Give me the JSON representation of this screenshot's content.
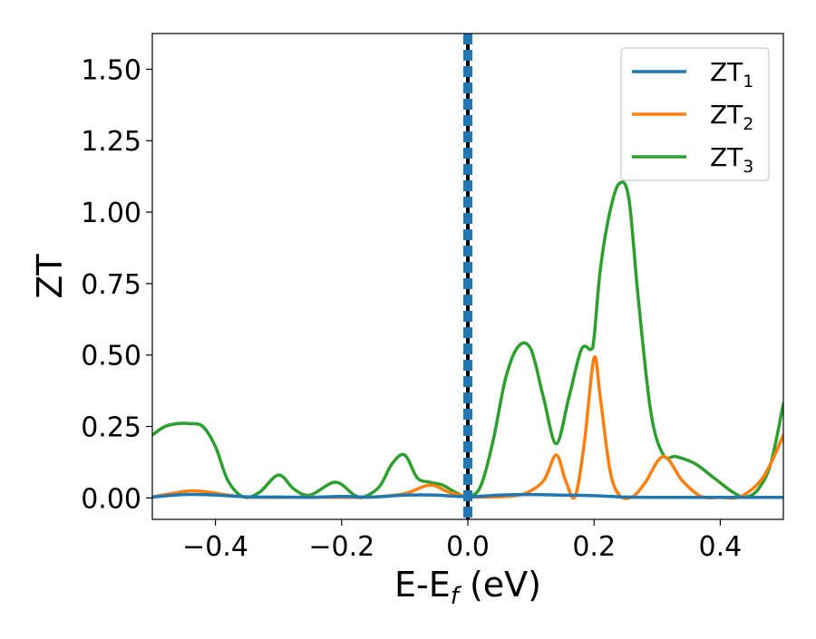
{
  "chart_data": {
    "type": "line",
    "title": "",
    "xlabel": "E-E",
    "xlabel_sub": "f",
    "xlabel_unit": " (eV)",
    "ylabel": "ZT",
    "xlim": [
      -0.5,
      0.5
    ],
    "ylim": [
      -0.075,
      1.625
    ],
    "xticks": [
      -0.4,
      -0.2,
      0.0,
      0.2,
      0.4
    ],
    "xtick_labels": [
      "−0.4",
      "−0.2",
      "0.0",
      "0.2",
      "0.4"
    ],
    "yticks": [
      0.0,
      0.25,
      0.5,
      0.75,
      1.0,
      1.25,
      1.5
    ],
    "ytick_labels": [
      "0.00",
      "0.25",
      "0.50",
      "0.75",
      "1.00",
      "1.25",
      "1.50"
    ],
    "grid": false,
    "legend_position": "top-right",
    "vline": {
      "x": 0.0,
      "colors": [
        "#000000",
        "#1f77b4"
      ]
    },
    "series": [
      {
        "name": "ZT",
        "name_sub": "1",
        "color": "#1f77b4",
        "x": [
          -0.5,
          -0.45,
          -0.4,
          -0.35,
          -0.3,
          -0.25,
          -0.2,
          -0.15,
          -0.1,
          -0.05,
          0.0,
          0.05,
          0.1,
          0.15,
          0.2,
          0.25,
          0.3,
          0.35,
          0.4,
          0.45,
          0.5
        ],
        "y": [
          0.003,
          0.012,
          0.01,
          0.004,
          0.003,
          0.002,
          0.005,
          0.003,
          0.01,
          0.01,
          0.004,
          0.01,
          0.012,
          0.01,
          0.008,
          0.003,
          0.002,
          0.002,
          0.002,
          0.002,
          0.002
        ]
      },
      {
        "name": "ZT",
        "name_sub": "2",
        "color": "#ff7f0e",
        "x": [
          -0.5,
          -0.47,
          -0.44,
          -0.41,
          -0.38,
          -0.35,
          -0.3,
          -0.25,
          -0.2,
          -0.15,
          -0.1,
          -0.06,
          -0.03,
          0.0,
          0.03,
          0.06,
          0.09,
          0.12,
          0.14,
          0.155,
          0.17,
          0.185,
          0.2,
          0.21,
          0.225,
          0.24,
          0.26,
          0.28,
          0.31,
          0.34,
          0.37,
          0.4,
          0.43,
          0.46,
          0.48,
          0.5
        ],
        "y": [
          0.003,
          0.015,
          0.025,
          0.02,
          0.01,
          0.003,
          0.002,
          0.003,
          0.002,
          0.003,
          0.015,
          0.045,
          0.02,
          0.005,
          0.003,
          0.005,
          0.015,
          0.06,
          0.15,
          0.06,
          0.005,
          0.2,
          0.49,
          0.35,
          0.1,
          0.01,
          0.003,
          0.05,
          0.145,
          0.06,
          0.005,
          0.002,
          0.003,
          0.05,
          0.12,
          0.22
        ]
      },
      {
        "name": "ZT",
        "name_sub": "3",
        "color": "#2ca02c",
        "x": [
          -0.5,
          -0.48,
          -0.46,
          -0.44,
          -0.42,
          -0.4,
          -0.38,
          -0.355,
          -0.33,
          -0.3,
          -0.275,
          -0.25,
          -0.21,
          -0.18,
          -0.165,
          -0.14,
          -0.12,
          -0.1,
          -0.08,
          -0.06,
          -0.04,
          -0.02,
          0.0,
          0.02,
          0.04,
          0.06,
          0.08,
          0.1,
          0.12,
          0.14,
          0.16,
          0.18,
          0.195,
          0.2,
          0.21,
          0.225,
          0.24,
          0.255,
          0.27,
          0.29,
          0.31,
          0.33,
          0.36,
          0.39,
          0.42,
          0.44,
          0.46,
          0.48,
          0.5
        ],
        "y": [
          0.22,
          0.25,
          0.26,
          0.26,
          0.25,
          0.18,
          0.06,
          0.003,
          0.02,
          0.08,
          0.03,
          0.01,
          0.055,
          0.01,
          0.003,
          0.04,
          0.12,
          0.15,
          0.07,
          0.055,
          0.045,
          0.02,
          0.005,
          0.04,
          0.2,
          0.42,
          0.53,
          0.52,
          0.35,
          0.19,
          0.35,
          0.52,
          0.52,
          0.56,
          0.8,
          1.0,
          1.1,
          1.05,
          0.7,
          0.3,
          0.15,
          0.145,
          0.12,
          0.07,
          0.02,
          0.003,
          0.03,
          0.12,
          0.33
        ]
      }
    ]
  }
}
